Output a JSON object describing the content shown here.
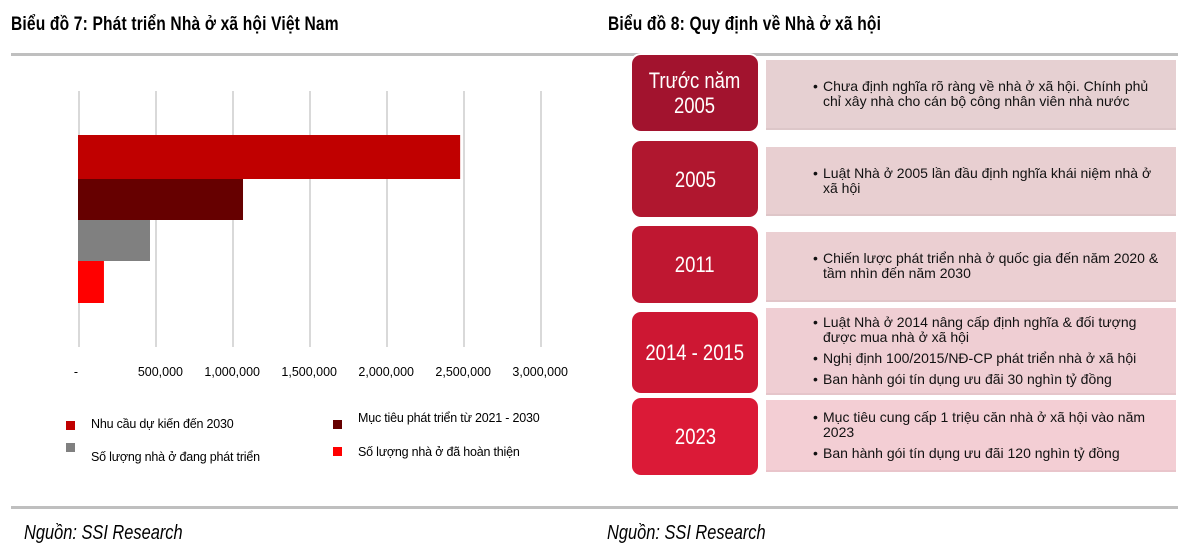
{
  "left_panel": {
    "title": "Biểu đồ 7: Phát triển Nhà ở xã hội Việt Nam",
    "source": "Nguồn: SSI Research"
  },
  "right_panel": {
    "title": "Biểu đồ 8: Quy định về Nhà ở xã hội",
    "source": "Nguồn: SSI Research",
    "timeline": [
      {
        "year": "Trước năm 2005",
        "year_lines": [
          "Trước năm",
          "2005"
        ],
        "color": "#a2132e",
        "desc_bg": "#e6d0d2",
        "bullets": [
          "Chưa định nghĩa rõ ràng về nhà ở xã hội. Chính phủ chỉ xây nhà cho cán bộ công nhân viên nhà nước"
        ]
      },
      {
        "year": "2005",
        "year_lines": [
          "2005"
        ],
        "color": "#b0172f",
        "desc_bg": "#e8cfd1",
        "bullets": [
          "Luật Nhà ở 2005 lần đầu định nghĩa khái niệm nhà ở xã hội"
        ]
      },
      {
        "year": "2011",
        "year_lines": [
          "2011"
        ],
        "color": "#bf1731",
        "desc_bg": "#ebcfd2",
        "bullets": [
          "Chiến lược phát triển nhà ở quốc gia đến năm 2020 & tầm nhìn đến năm 2030"
        ]
      },
      {
        "year": "2014 - 2015",
        "year_lines": [
          "2014 - 2015"
        ],
        "color": "#cd1733",
        "desc_bg": "#efced3",
        "bullets": [
          "Luật Nhà ở 2014 nâng cấp định nghĩa & đối tượng được mua nhà ở xã hội",
          "Nghị định 100/2015/NĐ-CP phát triển nhà ở xã hội",
          "Ban hành gói tín dụng ưu đãi 30 nghìn tỷ đồng"
        ]
      },
      {
        "year": "2023",
        "year_lines": [
          "2023"
        ],
        "color": "#db1a37",
        "desc_bg": "#f3ced4",
        "bullets": [
          "Mục tiêu cung cấp 1 triệu căn nhà ở xã hội vào năm 2023",
          "Ban hành gói tín dụng ưu đãi 120 nghìn tỷ đồng"
        ]
      }
    ]
  },
  "chart_data": {
    "type": "bar",
    "orientation": "horizontal",
    "title": "Biểu đồ 7: Phát triển Nhà ở xã hội Việt Nam",
    "xlabel": "",
    "ylabel": "",
    "xlim": [
      0,
      3000000
    ],
    "grid": true,
    "x_ticks": [
      0,
      500000,
      1000000,
      1500000,
      2000000,
      2500000,
      3000000
    ],
    "x_tick_labels": [
      "-",
      "500,000",
      "1,000,000",
      "1,500,000",
      "2,000,000",
      "2,500,000",
      "3,000,000"
    ],
    "legend_position": "bottom",
    "series": [
      {
        "name": "Nhu cầu dự kiến đến 2030",
        "value": 2475000,
        "color": "#c00000"
      },
      {
        "name": "Mục tiêu phát triển từ 2021 - 2030",
        "value": 1065000,
        "color": "#660000"
      },
      {
        "name": "Số lượng nhà ở đang phát triển",
        "value": 461000,
        "color": "#808080"
      },
      {
        "name": "Số lượng nhà ở đã hoàn thiện",
        "value": 162000,
        "color": "#ff0000"
      }
    ],
    "legend_order": [
      0,
      1,
      2,
      3
    ]
  }
}
